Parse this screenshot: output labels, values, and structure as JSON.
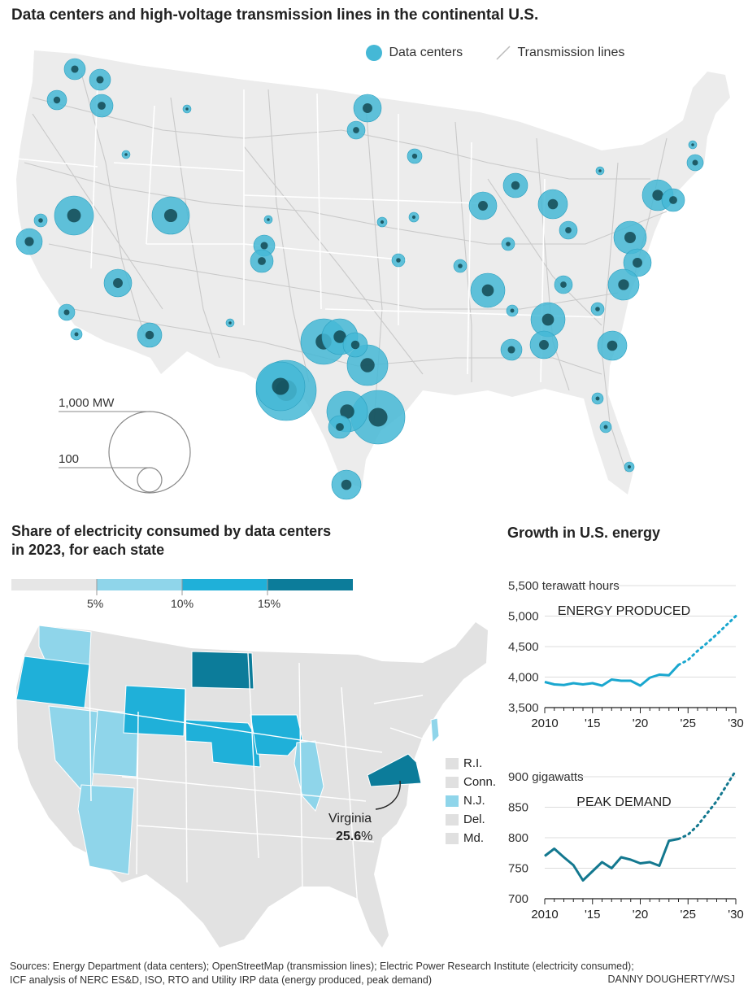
{
  "map1": {
    "title": "Data centers and high-voltage transmission lines in the continental U.S.",
    "legend_dc": "Data centers",
    "legend_tl": "Transmission lines",
    "scale_big": "1,000 MW",
    "scale_small": "100",
    "colors": {
      "bubble": "#45b8d6",
      "core": "#0a3a40",
      "land": "#ececec",
      "lines": "#c9c9c9"
    }
  },
  "map2": {
    "title_line1": "Share of electricity consumed by data centers",
    "title_line2": "in 2023, for each state",
    "scale_labels": [
      "5%",
      "10%",
      "15%"
    ],
    "scale_colors": [
      "#e6e6e6",
      "#8fd5ea",
      "#1fb0d9",
      "#0c7c9a"
    ],
    "small_states": [
      {
        "label": "R.I.",
        "color": "#e0e0e0"
      },
      {
        "label": "Conn.",
        "color": "#e0e0e0"
      },
      {
        "label": "N.J.",
        "color": "#8fd5ea"
      },
      {
        "label": "Del.",
        "color": "#e0e0e0"
      },
      {
        "label": "Md.",
        "color": "#e0e0e0"
      }
    ],
    "callout_state": "Virginia",
    "callout_value": "25.6",
    "callout_unit": "%"
  },
  "growth_title": "Growth in U.S. energy",
  "chart_data": [
    {
      "type": "line",
      "title": "ENERGY PRODUCED",
      "unit_label": "terawatt hours",
      "x": [
        2010,
        2011,
        2012,
        2013,
        2014,
        2015,
        2016,
        2017,
        2018,
        2019,
        2020,
        2021,
        2022,
        2023,
        2024
      ],
      "values": [
        3920,
        3880,
        3870,
        3900,
        3880,
        3900,
        3860,
        3960,
        3940,
        3940,
        3860,
        3990,
        4040,
        4030,
        4200
      ],
      "projection_x": [
        2024,
        2025,
        2026,
        2027,
        2028,
        2029,
        2030
      ],
      "projection_values": [
        4200,
        4280,
        4430,
        4560,
        4700,
        4850,
        5000
      ],
      "ylim": [
        3500,
        5500
      ],
      "yticks": [
        3500,
        4000,
        4500,
        5000,
        5500
      ],
      "ytick_labels": [
        "3,500",
        "4,000",
        "4,500",
        "5,000",
        "5,500"
      ],
      "xticks": [
        2010,
        2015,
        2020,
        2025,
        2030
      ],
      "xtick_labels": [
        "2010",
        "'15",
        "'20",
        "'25",
        "'30"
      ],
      "color": "#1aa7cf"
    },
    {
      "type": "line",
      "title": "PEAK DEMAND",
      "unit_label": "gigawatts",
      "x": [
        2010,
        2011,
        2012,
        2013,
        2014,
        2015,
        2016,
        2017,
        2018,
        2019,
        2020,
        2021,
        2022,
        2023,
        2024
      ],
      "values": [
        770,
        782,
        768,
        755,
        730,
        745,
        760,
        750,
        768,
        764,
        758,
        760,
        754,
        795,
        798
      ],
      "projection_x": [
        2024,
        2025,
        2026,
        2027,
        2028,
        2029,
        2030
      ],
      "projection_values": [
        798,
        805,
        820,
        840,
        860,
        885,
        910
      ],
      "ylim": [
        700,
        900
      ],
      "yticks": [
        700,
        750,
        800,
        850,
        900
      ],
      "ytick_labels": [
        "700",
        "750",
        "800",
        "850",
        "900"
      ],
      "xticks": [
        2010,
        2015,
        2020,
        2025,
        2030
      ],
      "xtick_labels": [
        "2010",
        "'15",
        "'20",
        "'25",
        "'30"
      ],
      "color": "#13788f"
    }
  ],
  "sources_line1": "Sources: Energy Department (data centers); OpenStreetMap (transmission lines); Electric Power Research Institute (electricity consumed);",
  "sources_line2": "ICF analysis of NERC ES&D, ISO, RTO and Utility IRP data (energy produced, peak demand)",
  "credit": "DANNY DOUGHERTY/WSJ"
}
